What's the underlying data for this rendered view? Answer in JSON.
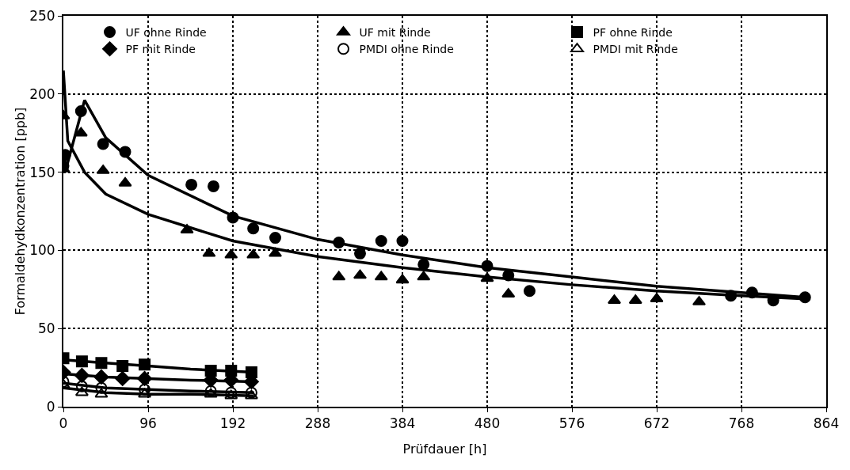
{
  "chart_data": {
    "type": "scatter",
    "xlabel": "Prüfdauer [h]",
    "ylabel": "Formaldehydkonzentration [ppb]",
    "xlim": [
      0,
      864
    ],
    "xticks": [
      0,
      96,
      192,
      288,
      384,
      480,
      576,
      672,
      768,
      864
    ],
    "ylim": [
      0,
      250
    ],
    "yticks": [
      0,
      50,
      100,
      150,
      200,
      250
    ],
    "grid": true,
    "legend": "top",
    "series": [
      {
        "name": "UF ohne Rinde",
        "color": "#000000",
        "marker": "circle",
        "x": [
          0,
          2,
          20,
          45,
          70,
          145,
          170,
          192,
          215,
          240,
          312,
          336,
          360,
          384,
          408,
          480,
          504,
          528,
          756,
          780,
          804,
          840
        ],
        "values": [
          154,
          161,
          189,
          168,
          163,
          142,
          141,
          121,
          114,
          108,
          105,
          98,
          106,
          106,
          91,
          90,
          84,
          74,
          71,
          73,
          68,
          70
        ]
      },
      {
        "name": "UF mit Rinde",
        "color": "#000000",
        "marker": "triangle",
        "x": [
          0,
          0,
          20,
          45,
          70,
          140,
          165,
          190,
          215,
          240,
          312,
          336,
          360,
          384,
          408,
          480,
          504,
          624,
          648,
          672,
          720
        ],
        "values": [
          186,
          152,
          175,
          151,
          143,
          113,
          98,
          97,
          97,
          98,
          83,
          84,
          83,
          81,
          83,
          82,
          72,
          68,
          68,
          69,
          67
        ]
      },
      {
        "name": "PF ohne Rinde",
        "color": "#000000",
        "marker": "square",
        "x": [
          0,
          21,
          43,
          67,
          92,
          167,
          190,
          213
        ],
        "values": [
          31,
          29,
          28,
          26,
          27,
          23,
          23,
          22
        ]
      },
      {
        "name": "PF mit Rinde",
        "color": "#000000",
        "marker": "diamond",
        "x": [
          0,
          21,
          43,
          67,
          92,
          167,
          190,
          213
        ],
        "values": [
          22,
          20,
          19,
          18,
          18,
          17,
          17,
          16
        ]
      },
      {
        "name": "PMDI ohne Rinde",
        "color": "#000000",
        "marker": "circle-open",
        "x": [
          0,
          21,
          43,
          92,
          167,
          190,
          213
        ],
        "values": [
          16,
          13,
          12,
          11,
          10,
          9,
          9
        ]
      },
      {
        "name": "PMDI mit Rinde",
        "color": "#000000",
        "marker": "triangle-open",
        "x": [
          0,
          21,
          43,
          92,
          167,
          190,
          213
        ],
        "values": [
          14,
          9,
          8,
          8,
          8,
          7,
          7
        ]
      },
      {
        "type": "line",
        "color": "#000000",
        "marker": "none",
        "x": [
          2,
          24,
          48,
          96,
          192,
          288,
          384,
          480,
          576,
          672,
          768,
          840
        ],
        "values": [
          150,
          196,
          172,
          148,
          122,
          107,
          97,
          89,
          83,
          77,
          73,
          70
        ]
      },
      {
        "type": "line",
        "color": "#000000",
        "marker": "none",
        "x": [
          0,
          5,
          24,
          48,
          96,
          192,
          288,
          384,
          480,
          576,
          672,
          768,
          840
        ],
        "values": [
          215,
          170,
          150,
          136,
          123,
          106,
          96,
          89,
          83,
          78,
          74,
          71,
          69
        ]
      },
      {
        "type": "line",
        "color": "#000000",
        "marker": "none",
        "x": [
          0,
          48,
          96,
          144,
          216
        ],
        "values": [
          30,
          28,
          26,
          24,
          22
        ]
      },
      {
        "type": "line",
        "color": "#000000",
        "marker": "none",
        "x": [
          0,
          48,
          96,
          144,
          216
        ],
        "values": [
          21,
          19,
          18,
          17,
          16
        ]
      },
      {
        "type": "line",
        "color": "#000000",
        "marker": "none",
        "x": [
          0,
          48,
          96,
          144,
          216
        ],
        "values": [
          15,
          12,
          11,
          10,
          9
        ]
      },
      {
        "type": "line",
        "color": "#000000",
        "marker": "none",
        "x": [
          0,
          48,
          96,
          144,
          216
        ],
        "values": [
          12,
          9,
          8,
          8,
          7
        ]
      }
    ]
  }
}
